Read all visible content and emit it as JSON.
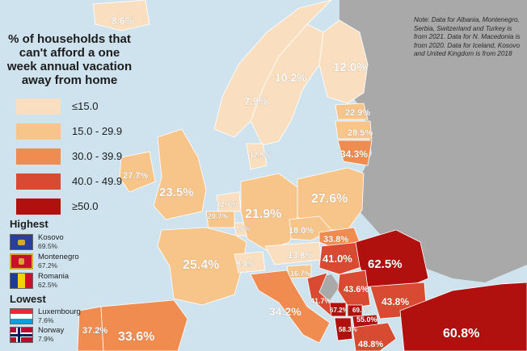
{
  "title": "% of households that can't afford a one week annual vacation away from home",
  "legend": [
    {
      "label": "≤15.0",
      "color": "#f9dfc0"
    },
    {
      "label": "15.0 - 29.9",
      "color": "#f7c48a"
    },
    {
      "label": "30.0 - 39.9",
      "color": "#f08c50"
    },
    {
      "label": "40.0 - 49.9",
      "color": "#d84a32"
    },
    {
      "label": "≥50.0",
      "color": "#b0100e"
    }
  ],
  "highest": {
    "heading": "Highest",
    "items": [
      {
        "country": "Kosovo",
        "value": "69.5%",
        "flag": "kosovo-flag-icon"
      },
      {
        "country": "Montenegro",
        "value": "67.2%",
        "flag": "montenegro-flag-icon"
      },
      {
        "country": "Romania",
        "value": "62.5%",
        "flag": "romania-flag-icon"
      }
    ]
  },
  "lowest": {
    "heading": "Lowest",
    "items": [
      {
        "country": "Luxembourg",
        "value": "7.6%",
        "flag": "luxembourg-flag-icon"
      },
      {
        "country": "Norway",
        "value": "7.9%",
        "flag": "norway-flag-icon"
      }
    ]
  },
  "note": "Note: Data for Albania, Montenegro, Serbia, Switzerland and Turkey is from 2021. Data for N. Macedonia is from 2020. Data for Iceland, Kosovo and United Kingdom is from 2018",
  "countries": [
    {
      "name": "Iceland",
      "value": "8.6%",
      "bin": 0
    },
    {
      "name": "Norway",
      "value": "7.9%",
      "bin": 0
    },
    {
      "name": "Sweden",
      "value": "10.2%",
      "bin": 0
    },
    {
      "name": "Finland",
      "value": "12.0%",
      "bin": 0
    },
    {
      "name": "Estonia",
      "value": "22.9%",
      "bin": 1
    },
    {
      "name": "Latvia",
      "value": "28.5%",
      "bin": 1
    },
    {
      "name": "Lithuania",
      "value": "34.3%",
      "bin": 2
    },
    {
      "name": "Denmark",
      "value": "12.9%",
      "bin": 0
    },
    {
      "name": "Ireland",
      "value": "27.7%",
      "bin": 1
    },
    {
      "name": "United Kingdom",
      "value": "23.5%",
      "bin": 1
    },
    {
      "name": "Netherlands",
      "value": "12.7%",
      "bin": 0
    },
    {
      "name": "Belgium",
      "value": "20.7%",
      "bin": 1
    },
    {
      "name": "Luxembourg",
      "value": "7.6%",
      "bin": 0
    },
    {
      "name": "Germany",
      "value": "21.9%",
      "bin": 1
    },
    {
      "name": "Poland",
      "value": "27.6%",
      "bin": 1
    },
    {
      "name": "Czechia",
      "value": "18.0%",
      "bin": 1
    },
    {
      "name": "Slovakia",
      "value": "33.8%",
      "bin": 2
    },
    {
      "name": "France",
      "value": "25.4%",
      "bin": 1
    },
    {
      "name": "Switzerland",
      "value": "8.4%",
      "bin": 0
    },
    {
      "name": "Austria",
      "value": "13.8%",
      "bin": 0
    },
    {
      "name": "Slovenia",
      "value": "16.7%",
      "bin": 1
    },
    {
      "name": "Hungary",
      "value": "41.0%",
      "bin": 3
    },
    {
      "name": "Romania",
      "value": "62.5%",
      "bin": 4
    },
    {
      "name": "Croatia",
      "value": "41.7%",
      "bin": 3
    },
    {
      "name": "Serbia",
      "value": "43.6%",
      "bin": 3
    },
    {
      "name": "Bulgaria",
      "value": "43.8%",
      "bin": 3
    },
    {
      "name": "Italy",
      "value": "34.2%",
      "bin": 2
    },
    {
      "name": "Montenegro",
      "value": "67.2%",
      "bin": 4
    },
    {
      "name": "Kosovo",
      "value": "69.5%",
      "bin": 4
    },
    {
      "name": "North Macedonia",
      "value": "55.0%",
      "bin": 4
    },
    {
      "name": "Albania",
      "value": "58.3%",
      "bin": 4
    },
    {
      "name": "Greece",
      "value": "48.8%",
      "bin": 3
    },
    {
      "name": "Portugal",
      "value": "37.2%",
      "bin": 2
    },
    {
      "name": "Spain",
      "value": "33.6%",
      "bin": 2
    },
    {
      "name": "Turkey",
      "value": "60.8%",
      "bin": 4
    }
  ],
  "no_data_color": "#a9a9a9"
}
